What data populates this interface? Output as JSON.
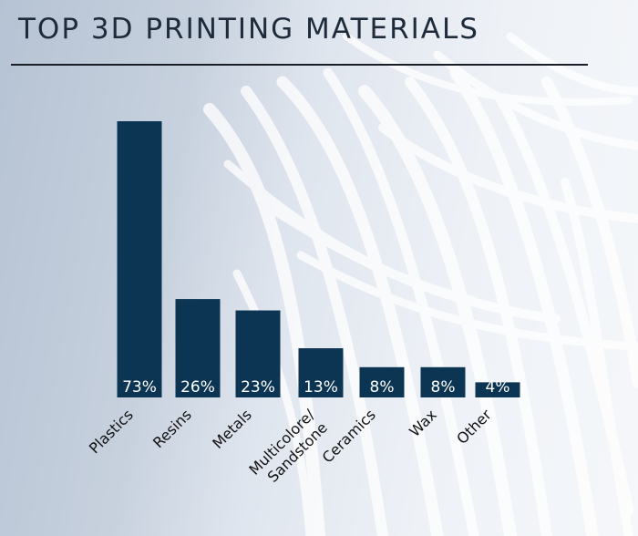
{
  "title": "TOP 3D PRINTING MATERIALS",
  "colors": {
    "bar": "#0b3553",
    "bar_label": "#ffffff",
    "axis_label": "#111111",
    "title": "#1e2b3b"
  },
  "chart_data": {
    "type": "bar",
    "title": "TOP 3D PRINTING MATERIALS",
    "categories": [
      "Plastics",
      "Resins",
      "Metals",
      "Multicolore/\nSandstone",
      "Ceramics",
      "Wax",
      "Other"
    ],
    "values": [
      73,
      26,
      23,
      13,
      8,
      8,
      4
    ],
    "data_labels": [
      "73%",
      "26%",
      "23%",
      "13%",
      "8%",
      "8%",
      "4%"
    ],
    "unit": "%",
    "xlabel": "",
    "ylabel": "",
    "grid": false,
    "legend": "none"
  }
}
